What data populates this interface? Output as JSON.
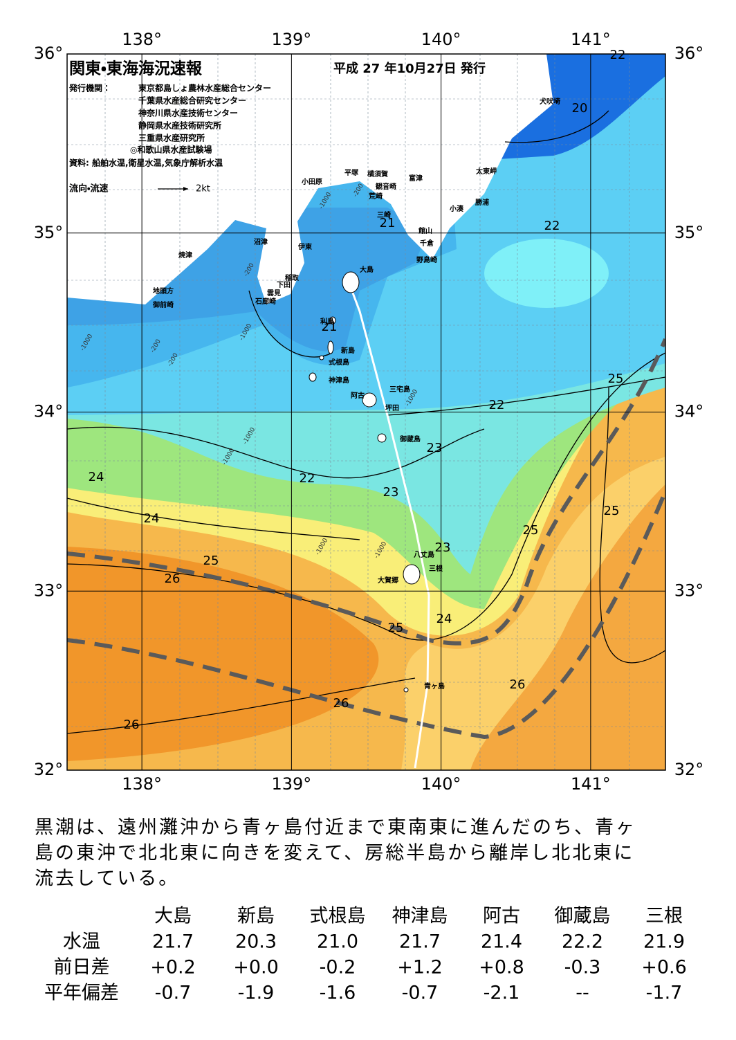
{
  "map": {
    "title": "関東・東海海況速報",
    "date": "平成 27 年10月27日 発行",
    "issuer_label": "発行機関：",
    "issuers": [
      "東京都島しょ農林水産総合センター",
      "千葉県水産総合研究センター",
      "神奈川県水産技術センター",
      "静岡県水産技術研究所",
      "三重県水産研究所",
      "◎和歌山県水産試験場"
    ],
    "source": "資料: 船舶水温,衛星水温,気象庁解析水温",
    "legend_label": "流向・流速",
    "legend_scale": "2kt",
    "lon_ticks": [
      {
        "value": 138,
        "label": "138°"
      },
      {
        "value": 139,
        "label": "139°"
      },
      {
        "value": 140,
        "label": "140°"
      },
      {
        "value": 141,
        "label": "141°"
      }
    ],
    "lat_ticks": [
      {
        "value": 36,
        "label": "36°"
      },
      {
        "value": 35,
        "label": "35°"
      },
      {
        "value": 34,
        "label": "34°"
      },
      {
        "value": 33,
        "label": "33°"
      },
      {
        "value": 32,
        "label": "32°"
      }
    ],
    "place_names": [
      "犬吠埼",
      "太東岬",
      "勝浦",
      "小湊",
      "富津",
      "横須賀",
      "平塚",
      "観音崎",
      "荒崎",
      "三崎",
      "館山",
      "千倉",
      "野島崎",
      "小田原",
      "沼津",
      "伊東",
      "焼津",
      "稲取",
      "下田",
      "雲見",
      "石廊崎",
      "地頭方",
      "御前崎",
      "大島",
      "利島",
      "新島",
      "式根島",
      "神津島",
      "三宅島",
      "阿古",
      "坪田",
      "御蔵島",
      "八丈島",
      "三根",
      "大賀郷",
      "青ヶ島"
    ],
    "isotherm_labels": [
      22,
      20,
      21,
      22,
      21,
      25,
      22,
      23,
      24,
      22,
      23,
      24,
      25,
      25,
      23,
      25,
      26,
      24,
      25,
      26,
      26,
      26
    ],
    "depth_labels": [
      "-1000",
      "-200",
      "-200",
      "-1000",
      "-200",
      "-1000",
      "-200",
      "-1000",
      "-1000",
      "-1000",
      "-1000",
      "-1000"
    ]
  },
  "summary": [
    "黒潮は、遠州灘沖から青ヶ島付近まで東南東に進んだのち、青ヶ",
    "島の東沖で北北東に向きを変えて、房総半島から離岸し北北東に",
    "流去している。"
  ],
  "table": {
    "columns": [
      "大島",
      "新島",
      "式根島",
      "神津島",
      "阿古",
      "御蔵島",
      "三根"
    ],
    "rows": [
      [
        "水温",
        "21.7",
        "20.3",
        "21.0",
        "21.7",
        "21.4",
        "22.2",
        "21.9"
      ],
      [
        "前日差",
        "+0.2",
        "+0.0",
        "-0.2",
        "+1.2",
        "+0.8",
        "-0.3",
        "+0.6"
      ],
      [
        "平年偏差",
        "-0.7",
        "-1.9",
        "-1.6",
        "-0.7",
        "-2.1",
        "--",
        "-1.7"
      ]
    ]
  }
}
